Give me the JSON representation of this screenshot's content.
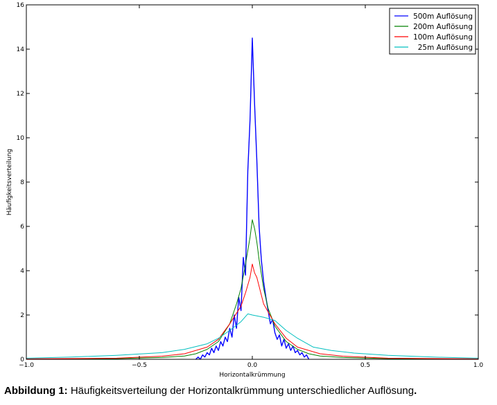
{
  "caption": {
    "label": "Abbildung 1:",
    "text": " Häufigkeitsverteilung der Horizontalkrümmung unterschiedlicher Auflösung",
    "end": "."
  },
  "chart_data": {
    "type": "line",
    "title": "",
    "xlabel": "Horizontalkrümmung",
    "ylabel": "Häufigkeitsverteilung",
    "xlim": [
      -1.0,
      1.0
    ],
    "ylim": [
      0,
      16
    ],
    "x_ticks": [
      -1.0,
      -0.5,
      0.0,
      0.5,
      1.0
    ],
    "x_tick_labels": [
      "−1.0",
      "−0.5",
      "0.0",
      "0.5",
      "1.0"
    ],
    "y_ticks": [
      0,
      2,
      4,
      6,
      8,
      10,
      12,
      14,
      16
    ],
    "y_tick_labels": [
      "0",
      "2",
      "4",
      "6",
      "8",
      "10",
      "12",
      "14",
      "16"
    ],
    "grid": false,
    "legend_position": "top-right",
    "series": [
      {
        "name": "500m Auflösung",
        "color": "#0000ff",
        "x": [
          -0.25,
          -0.24,
          -0.23,
          -0.22,
          -0.21,
          -0.2,
          -0.19,
          -0.18,
          -0.17,
          -0.16,
          -0.15,
          -0.14,
          -0.13,
          -0.12,
          -0.11,
          -0.1,
          -0.09,
          -0.08,
          -0.07,
          -0.06,
          -0.05,
          -0.04,
          -0.03,
          -0.02,
          -0.01,
          0.0,
          0.01,
          0.02,
          0.03,
          0.04,
          0.05,
          0.06,
          0.07,
          0.08,
          0.09,
          0.1,
          0.11,
          0.12,
          0.13,
          0.14,
          0.15,
          0.16,
          0.17,
          0.18,
          0.19,
          0.2,
          0.21,
          0.22,
          0.23,
          0.24,
          0.25
        ],
        "y": [
          0.0,
          0.1,
          0.0,
          0.2,
          0.1,
          0.3,
          0.2,
          0.5,
          0.3,
          0.6,
          0.4,
          0.8,
          0.6,
          1.0,
          0.8,
          1.4,
          1.0,
          2.0,
          1.4,
          2.8,
          2.2,
          4.6,
          3.8,
          8.5,
          10.8,
          14.5,
          11.5,
          9.0,
          6.0,
          4.5,
          3.5,
          2.8,
          2.2,
          1.6,
          1.8,
          1.2,
          0.9,
          1.1,
          0.6,
          0.9,
          0.5,
          0.7,
          0.4,
          0.6,
          0.3,
          0.4,
          0.2,
          0.3,
          0.1,
          0.2,
          0.0
        ]
      },
      {
        "name": "200m Auflösung",
        "color": "#008000",
        "x": [
          -1.0,
          -0.6,
          -0.4,
          -0.3,
          -0.25,
          -0.2,
          -0.15,
          -0.1,
          -0.07,
          -0.05,
          -0.03,
          -0.01,
          0.0,
          0.01,
          0.02,
          0.03,
          0.05,
          0.07,
          0.1,
          0.15,
          0.2,
          0.25,
          0.3,
          0.4,
          0.6,
          1.0
        ],
        "y": [
          0.01,
          0.03,
          0.08,
          0.15,
          0.25,
          0.45,
          0.8,
          1.6,
          2.5,
          3.2,
          4.3,
          5.5,
          6.3,
          5.9,
          5.3,
          4.5,
          3.2,
          2.3,
          1.5,
          0.8,
          0.45,
          0.25,
          0.15,
          0.08,
          0.03,
          0.01
        ]
      },
      {
        "name": "100m Auflösung",
        "color": "#ff0000",
        "x": [
          -1.0,
          -0.6,
          -0.4,
          -0.3,
          -0.2,
          -0.15,
          -0.1,
          -0.05,
          -0.03,
          -0.01,
          0.0,
          0.01,
          0.02,
          0.05,
          0.1,
          0.15,
          0.2,
          0.3,
          0.4,
          0.6,
          1.0
        ],
        "y": [
          0.02,
          0.05,
          0.14,
          0.25,
          0.55,
          0.9,
          1.6,
          2.4,
          3.0,
          3.7,
          4.3,
          3.9,
          3.7,
          2.5,
          1.6,
          0.95,
          0.55,
          0.25,
          0.14,
          0.05,
          0.02
        ]
      },
      {
        "name": "25m Auflösung",
        "color": "#00bfbf",
        "x": [
          -1.0,
          -0.8,
          -0.6,
          -0.4,
          -0.3,
          -0.2,
          -0.15,
          -0.1,
          -0.05,
          -0.02,
          0.0,
          0.05,
          0.1,
          0.15,
          0.2,
          0.27,
          0.35,
          0.45,
          0.6,
          0.8,
          1.0
        ],
        "y": [
          0.05,
          0.1,
          0.18,
          0.3,
          0.45,
          0.7,
          0.95,
          1.3,
          1.7,
          2.05,
          2.0,
          1.9,
          1.75,
          1.3,
          0.95,
          0.55,
          0.4,
          0.28,
          0.18,
          0.1,
          0.05
        ]
      }
    ]
  }
}
